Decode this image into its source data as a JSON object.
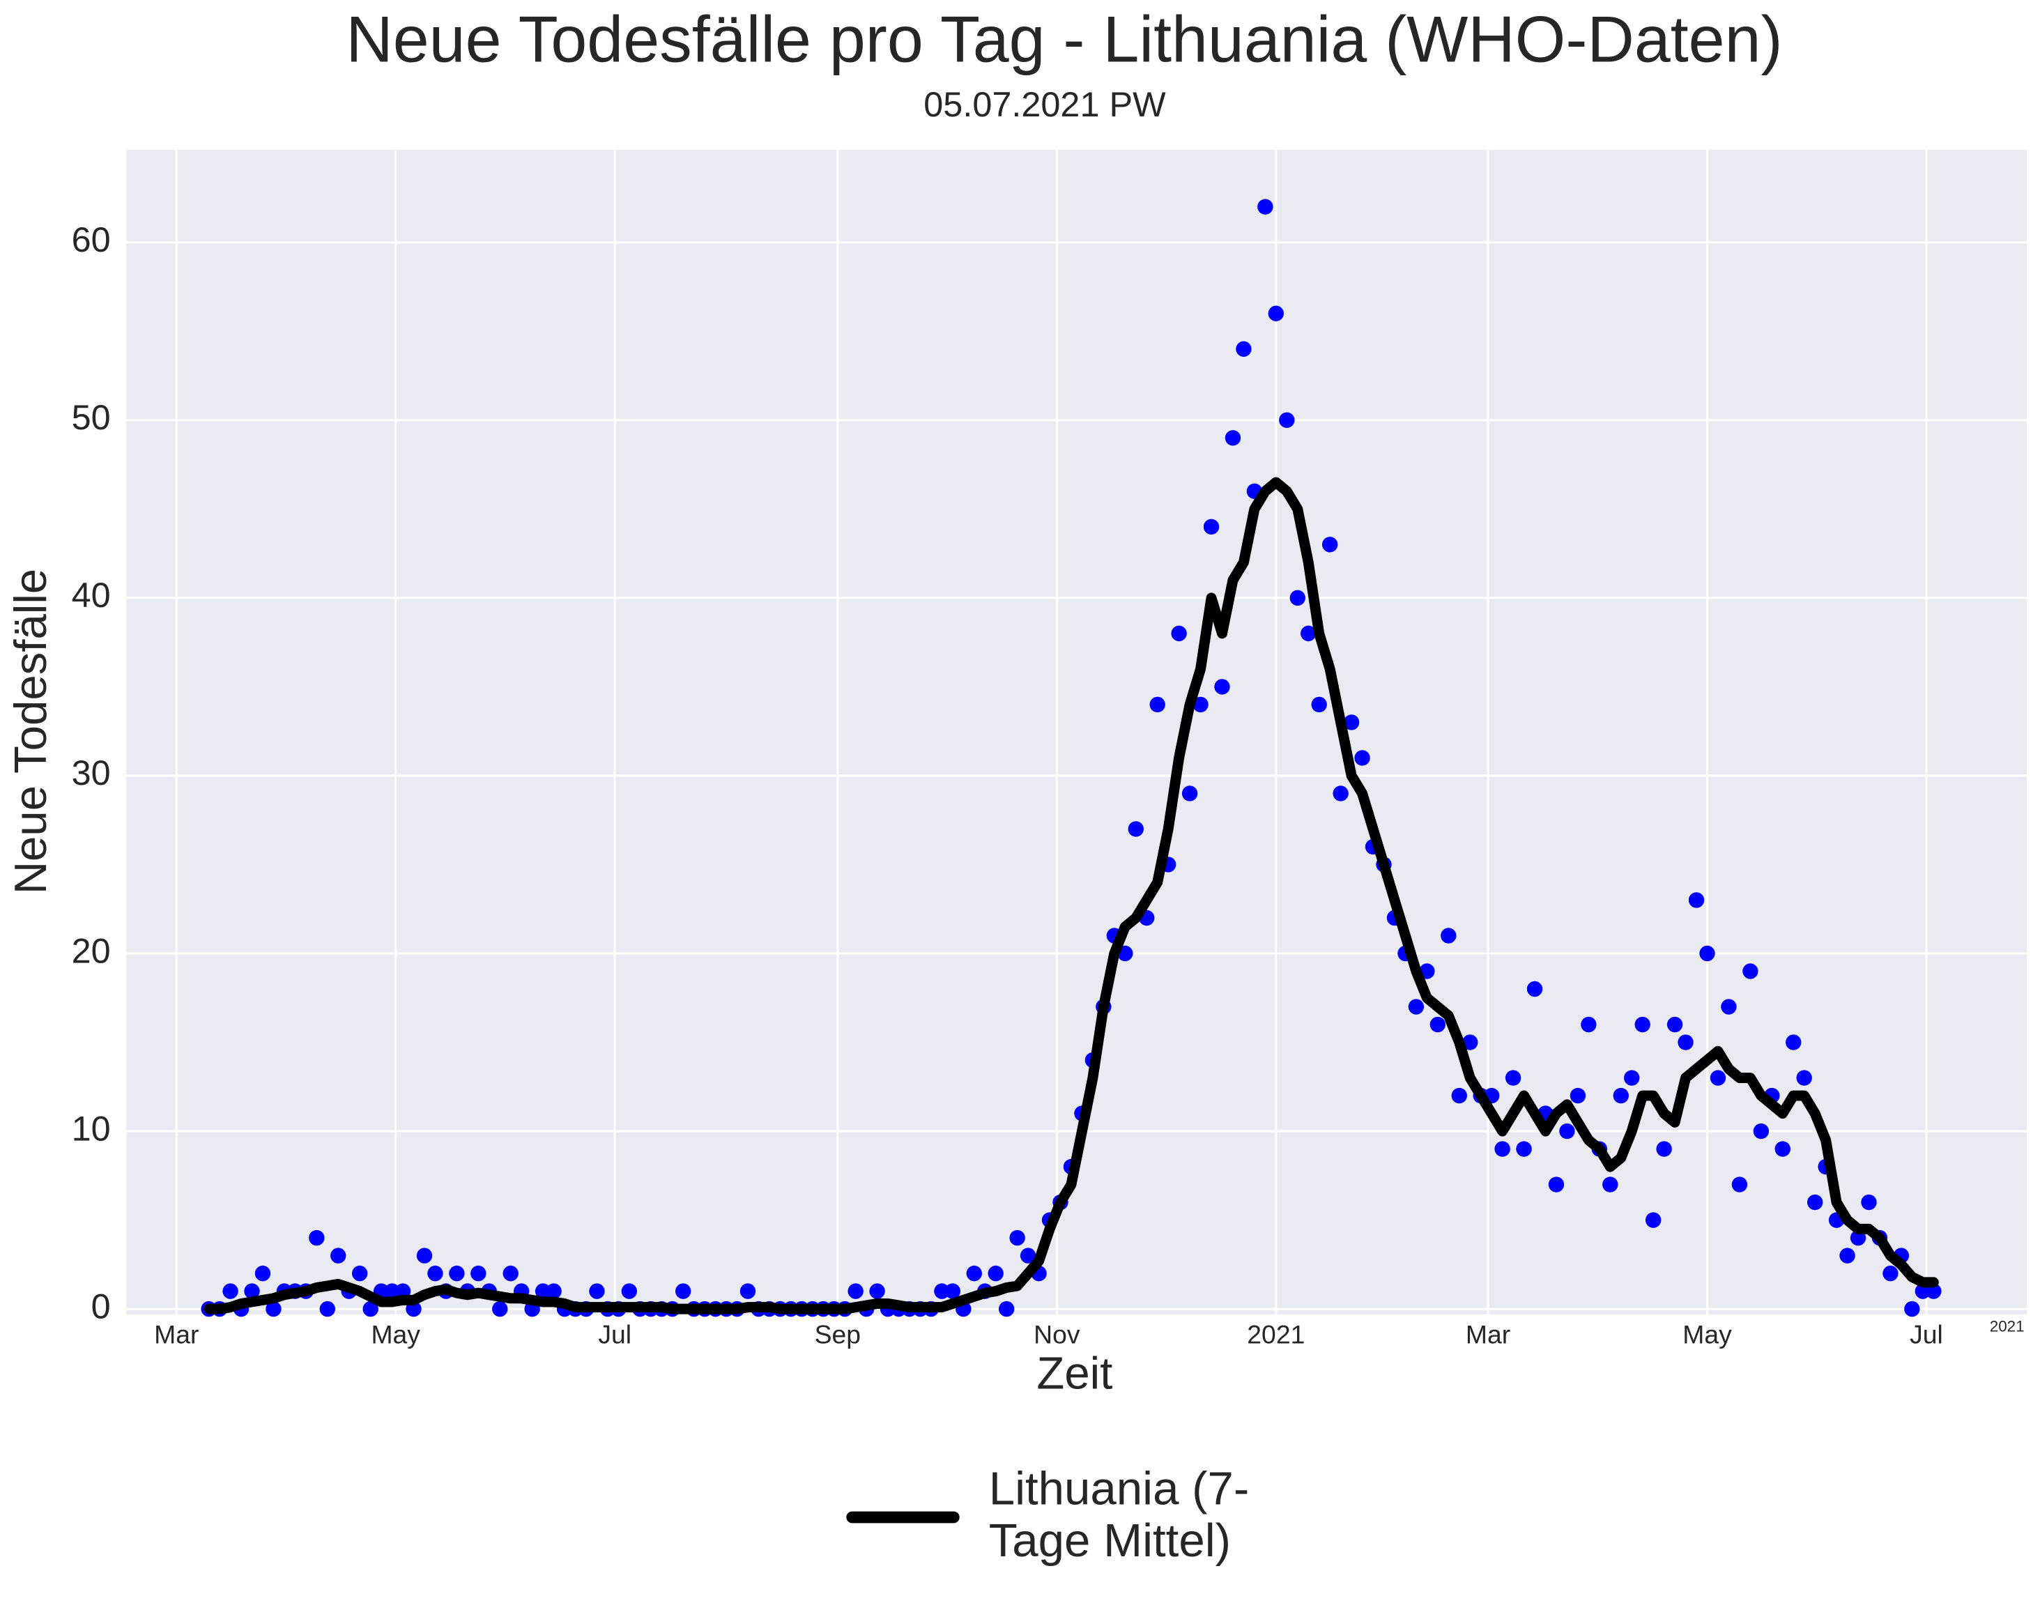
{
  "chart_data": {
    "type": "line",
    "title": "Neue Todesfälle pro Tag - Lithuania (WHO-Daten)",
    "subtitle": "05.07.2021 PW",
    "x_label": "Zeit",
    "y_label": "Neue Todesfälle",
    "x_offset_label": "2021",
    "background": "#eaeaf2",
    "grid": true,
    "legend": "bottom",
    "xlim": [
      "2020-02-16",
      "2021-07-29"
    ],
    "ylim": [
      -0.3,
      65.2
    ],
    "yticks": [
      0,
      10,
      20,
      30,
      40,
      50,
      60
    ],
    "xticks": [
      {
        "value": "2020-03",
        "label": "Mar"
      },
      {
        "value": "2020-05",
        "label": "May"
      },
      {
        "value": "2020-07",
        "label": "Jul"
      },
      {
        "value": "2020-09",
        "label": "Sep"
      },
      {
        "value": "2020-11",
        "label": "Nov"
      },
      {
        "value": "2021-01",
        "label": "2021"
      },
      {
        "value": "2021-03",
        "label": "Mar"
      },
      {
        "value": "2021-05",
        "label": "May"
      },
      {
        "value": "2021-07",
        "label": "Jul"
      }
    ],
    "x": [
      "2020-03-10",
      "2020-03-13",
      "2020-03-16",
      "2020-03-19",
      "2020-03-22",
      "2020-03-25",
      "2020-03-28",
      "2020-03-31",
      "2020-04-03",
      "2020-04-06",
      "2020-04-09",
      "2020-04-12",
      "2020-04-15",
      "2020-04-18",
      "2020-04-21",
      "2020-04-24",
      "2020-04-27",
      "2020-04-30",
      "2020-05-03",
      "2020-05-06",
      "2020-05-09",
      "2020-05-12",
      "2020-05-15",
      "2020-05-18",
      "2020-05-21",
      "2020-05-24",
      "2020-05-27",
      "2020-05-30",
      "2020-06-02",
      "2020-06-05",
      "2020-06-08",
      "2020-06-11",
      "2020-06-14",
      "2020-06-17",
      "2020-06-20",
      "2020-06-23",
      "2020-06-26",
      "2020-06-29",
      "2020-07-02",
      "2020-07-05",
      "2020-07-08",
      "2020-07-11",
      "2020-07-14",
      "2020-07-17",
      "2020-07-20",
      "2020-07-23",
      "2020-07-26",
      "2020-07-29",
      "2020-08-01",
      "2020-08-04",
      "2020-08-07",
      "2020-08-10",
      "2020-08-13",
      "2020-08-16",
      "2020-08-19",
      "2020-08-22",
      "2020-08-25",
      "2020-08-28",
      "2020-08-31",
      "2020-09-03",
      "2020-09-06",
      "2020-09-09",
      "2020-09-12",
      "2020-09-15",
      "2020-09-18",
      "2020-09-21",
      "2020-09-24",
      "2020-09-27",
      "2020-09-30",
      "2020-10-03",
      "2020-10-06",
      "2020-10-09",
      "2020-10-12",
      "2020-10-15",
      "2020-10-18",
      "2020-10-21",
      "2020-10-24",
      "2020-10-27",
      "2020-10-30",
      "2020-11-02",
      "2020-11-05",
      "2020-11-08",
      "2020-11-11",
      "2020-11-14",
      "2020-11-17",
      "2020-11-20",
      "2020-11-23",
      "2020-11-26",
      "2020-11-29",
      "2020-12-02",
      "2020-12-05",
      "2020-12-08",
      "2020-12-11",
      "2020-12-14",
      "2020-12-17",
      "2020-12-20",
      "2020-12-23",
      "2020-12-26",
      "2020-12-29",
      "2021-01-01",
      "2021-01-04",
      "2021-01-07",
      "2021-01-10",
      "2021-01-13",
      "2021-01-16",
      "2021-01-19",
      "2021-01-22",
      "2021-01-25",
      "2021-01-28",
      "2021-01-31",
      "2021-02-03",
      "2021-02-06",
      "2021-02-09",
      "2021-02-12",
      "2021-02-15",
      "2021-02-18",
      "2021-02-21",
      "2021-02-24",
      "2021-02-27",
      "2021-03-02",
      "2021-03-05",
      "2021-03-08",
      "2021-03-11",
      "2021-03-14",
      "2021-03-17",
      "2021-03-20",
      "2021-03-23",
      "2021-03-26",
      "2021-03-29",
      "2021-04-01",
      "2021-04-04",
      "2021-04-07",
      "2021-04-10",
      "2021-04-13",
      "2021-04-16",
      "2021-04-19",
      "2021-04-22",
      "2021-04-25",
      "2021-04-28",
      "2021-05-01",
      "2021-05-04",
      "2021-05-07",
      "2021-05-10",
      "2021-05-13",
      "2021-05-16",
      "2021-05-19",
      "2021-05-22",
      "2021-05-25",
      "2021-05-28",
      "2021-05-31",
      "2021-06-03",
      "2021-06-06",
      "2021-06-09",
      "2021-06-12",
      "2021-06-15",
      "2021-06-18",
      "2021-06-21",
      "2021-06-24",
      "2021-06-27",
      "2021-06-30",
      "2021-07-03"
    ],
    "series": [
      {
        "name": "Lithuania (7-Tage Mittel)",
        "type": "line",
        "color": "#000000",
        "values": [
          0,
          0,
          0.1,
          0.3,
          0.4,
          0.5,
          0.6,
          0.8,
          0.9,
          1,
          1.2,
          1.3,
          1.4,
          1.2,
          1,
          0.7,
          0.4,
          0.4,
          0.5,
          0.5,
          0.8,
          1,
          1.1,
          0.9,
          0.8,
          0.9,
          0.8,
          0.7,
          0.6,
          0.6,
          0.5,
          0.4,
          0.4,
          0.3,
          0.1,
          0.1,
          0.1,
          0.1,
          0.1,
          0.1,
          0.1,
          0.1,
          0.1,
          0,
          0,
          0,
          0,
          0,
          0,
          0,
          0.1,
          0.1,
          0.1,
          0,
          0,
          0,
          0,
          0,
          0,
          0,
          0.1,
          0.2,
          0.3,
          0.3,
          0.2,
          0.1,
          0.1,
          0.1,
          0.1,
          0.3,
          0.5,
          0.7,
          0.9,
          1,
          1.2,
          1.3,
          2,
          2.7,
          4.5,
          6,
          7,
          10,
          13,
          17,
          20,
          21.5,
          22,
          23,
          24,
          27,
          31,
          34,
          36,
          40,
          38,
          41,
          42,
          45,
          46,
          46.5,
          46,
          45,
          42,
          38,
          36,
          33,
          30,
          29,
          27,
          25,
          23,
          21,
          19,
          17.5,
          17,
          16.5,
          15,
          13,
          12,
          11,
          10,
          11,
          12,
          11,
          10,
          11,
          11.5,
          10.5,
          9.5,
          9,
          8,
          8.5,
          10,
          12,
          12,
          11,
          10.5,
          13,
          13.5,
          14,
          14.5,
          13.5,
          13,
          13,
          12,
          11.5,
          11,
          12,
          12,
          11,
          9.5,
          6,
          5,
          4.5,
          4.5,
          4,
          3,
          2.5,
          1.8,
          1.5,
          1.5
        ]
      },
      {
        "type": "scatter",
        "color": "#0000ff",
        "values": [
          0,
          0,
          1,
          0,
          1,
          2,
          0,
          1,
          1,
          1,
          4,
          0,
          3,
          1,
          2,
          0,
          1,
          1,
          1,
          0,
          3,
          2,
          1,
          2,
          1,
          2,
          1,
          0,
          2,
          1,
          0,
          1,
          1,
          0,
          0,
          0,
          1,
          0,
          0,
          1,
          0,
          0,
          0,
          0,
          1,
          0,
          0,
          0,
          0,
          0,
          1,
          0,
          0,
          0,
          0,
          0,
          0,
          0,
          0,
          0,
          1,
          0,
          1,
          0,
          0,
          0,
          0,
          0,
          1,
          1,
          0,
          2,
          1,
          2,
          0,
          4,
          3,
          2,
          5,
          6,
          8,
          11,
          14,
          17,
          21,
          20,
          27,
          22,
          34,
          25,
          38,
          29,
          34,
          44,
          35,
          49,
          54,
          46,
          62,
          56,
          50,
          40,
          38,
          34,
          43,
          29,
          33,
          31,
          26,
          25,
          22,
          20,
          17,
          19,
          16,
          21,
          12,
          15,
          12,
          12,
          9,
          13,
          9,
          18,
          11,
          7,
          10,
          12,
          16,
          9,
          7,
          12,
          13,
          16,
          5,
          9,
          16,
          15,
          23,
          20,
          13,
          17,
          7,
          19,
          10,
          12,
          9,
          15,
          13,
          6,
          8,
          5,
          3,
          4,
          6,
          4,
          2,
          3,
          0,
          1,
          1
        ]
      }
    ]
  }
}
